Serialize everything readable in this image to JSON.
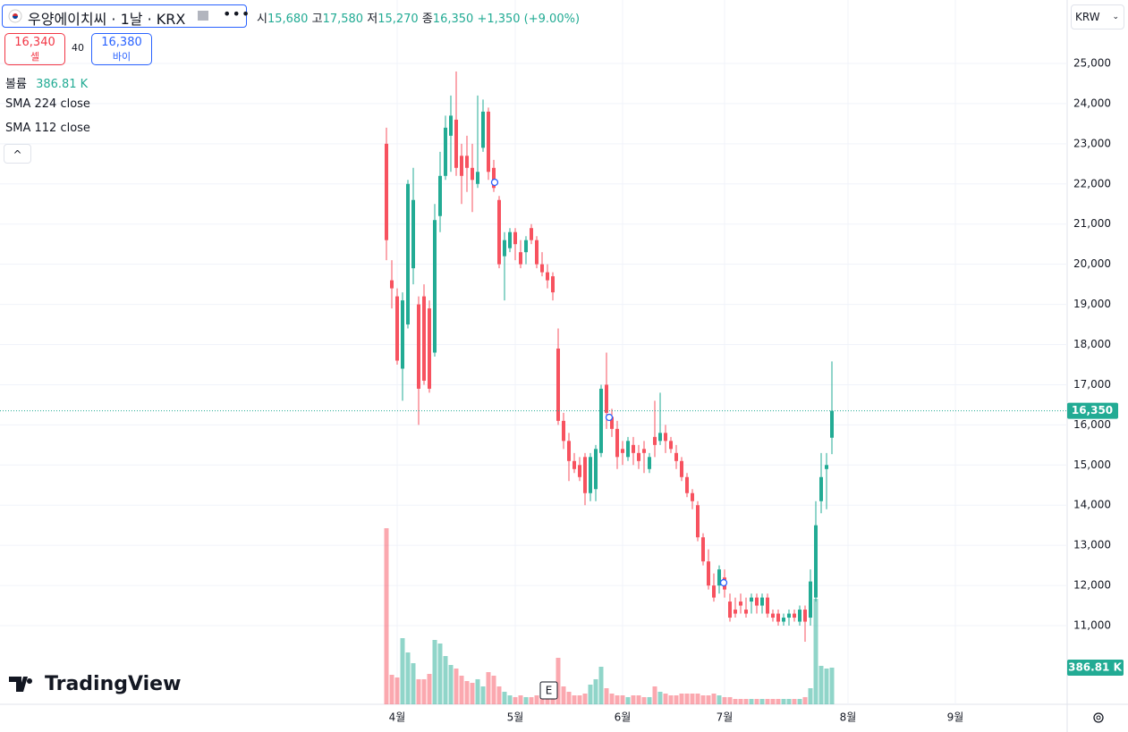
{
  "header": {
    "symbol": "우양에이치씨 · 1날 · KRX",
    "ohlc": [
      {
        "label": "시",
        "value": "15,680"
      },
      {
        "label": "고",
        "value": "17,580"
      },
      {
        "label": "저",
        "value": "15,270"
      },
      {
        "label": "종",
        "value": "16,350"
      }
    ],
    "change": "+1,350 (+9.00%)"
  },
  "trade": {
    "sell_price": "16,340",
    "sell_label": "셀",
    "spread": "40",
    "buy_price": "16,380",
    "buy_label": "바이"
  },
  "legend": {
    "volume_label": "볼륨",
    "volume_value": "386.81 K",
    "indicators": [
      "SMA 224 close",
      "SMA 112 close"
    ]
  },
  "currency": "KRW",
  "logo": "TradingView",
  "events": {
    "earnings": "E"
  },
  "chart_data": {
    "type": "candlestick",
    "categories": [
      null,
      null,
      "4월",
      null,
      null,
      null,
      null,
      null,
      null,
      null,
      null,
      null,
      null,
      null,
      null,
      null,
      null,
      null,
      null,
      null,
      null,
      null,
      null,
      null,
      "5월",
      null,
      null,
      null,
      null,
      null,
      null,
      null,
      null,
      null,
      null,
      null,
      null,
      null,
      null,
      null,
      null,
      null,
      null,
      null,
      "6월",
      null,
      null,
      null,
      null,
      null,
      null,
      null,
      null,
      null,
      null,
      null,
      null,
      null,
      null,
      null,
      null,
      null,
      null,
      "7월",
      null,
      null,
      null,
      null,
      null,
      null,
      null,
      null,
      null,
      null,
      null,
      null,
      null,
      null,
      null,
      null,
      null,
      null,
      null,
      null,
      null,
      null,
      "8월",
      null,
      null,
      null,
      null,
      null,
      null,
      null,
      null,
      null,
      null,
      null,
      null,
      null,
      null,
      null,
      null,
      null,
      null,
      null,
      "9월",
      null
    ],
    "open": [
      23000,
      19600,
      19200,
      17400,
      18500,
      19900,
      19000,
      19200,
      18900,
      17800,
      21200,
      22200,
      23200,
      23600,
      22700,
      22700,
      22400,
      22000,
      22900,
      23800,
      22400,
      21600,
      20200,
      20400,
      20800,
      20300,
      20300,
      20900,
      20600,
      20000,
      19800,
      19700,
      17900,
      16100,
      15600,
      15100,
      15000,
      15200,
      14300,
      14400,
      15300,
      17000,
      16200,
      15900,
      15400,
      15200,
      15500,
      15300,
      15400,
      14900,
      15700,
      15600,
      15800,
      15600,
      15300,
      15100,
      14700,
      14300,
      14000,
      13200,
      12600,
      12000,
      12000,
      12200,
      11600,
      11400,
      11600,
      11400,
      11600,
      11700,
      11500,
      11700,
      11300,
      11300,
      11100,
      11200,
      11300,
      11100,
      11400,
      11200,
      11700,
      14100,
      14900,
      15680,
      null,
      null,
      null,
      null,
      null,
      null,
      null,
      null,
      null,
      null,
      null,
      null,
      null,
      null,
      null,
      null,
      null,
      null,
      null,
      null,
      null,
      null,
      null,
      null
    ],
    "high": [
      23400,
      20100,
      19400,
      19300,
      22100,
      22400,
      19200,
      19500,
      19100,
      21500,
      22800,
      23700,
      24200,
      24800,
      23000,
      23200,
      23000,
      24200,
      24100,
      23900,
      22600,
      21700,
      20800,
      20900,
      20900,
      20600,
      20700,
      21000,
      20700,
      20300,
      20000,
      19800,
      18400,
      16300,
      15800,
      15300,
      15200,
      15300,
      15300,
      15500,
      17000,
      17800,
      16400,
      16100,
      15600,
      15700,
      15700,
      15500,
      15600,
      15300,
      16600,
      16800,
      16000,
      15700,
      15500,
      15200,
      14800,
      14400,
      14100,
      13300,
      12900,
      12300,
      12500,
      12400,
      11800,
      11700,
      11800,
      11700,
      11800,
      11800,
      11800,
      11800,
      11400,
      11400,
      11300,
      11400,
      11400,
      11500,
      11500,
      12400,
      14100,
      15300,
      15300,
      17580,
      null,
      null,
      null,
      null,
      null,
      null,
      null,
      null,
      null,
      null,
      null,
      null,
      null,
      null,
      null,
      null,
      null,
      null,
      null,
      null,
      null,
      null,
      null,
      null
    ],
    "low": [
      20100,
      18900,
      17500,
      16600,
      18400,
      19500,
      16000,
      17000,
      16800,
      17700,
      20800,
      22100,
      22300,
      22200,
      21500,
      21800,
      21300,
      21900,
      22800,
      22100,
      21800,
      19900,
      19100,
      20300,
      20100,
      19900,
      20000,
      20500,
      19900,
      19700,
      19400,
      19100,
      16000,
      15400,
      14600,
      14800,
      14600,
      14000,
      14100,
      14100,
      15200,
      15900,
      15700,
      14900,
      15000,
      15100,
      15000,
      14900,
      14800,
      14800,
      15200,
      15500,
      15300,
      15300,
      14900,
      14600,
      14200,
      13900,
      13100,
      12500,
      11900,
      11600,
      11800,
      11700,
      11100,
      11200,
      11300,
      11200,
      11300,
      11300,
      11300,
      11200,
      11100,
      11000,
      11000,
      11000,
      11100,
      11000,
      10600,
      11000,
      11600,
      13800,
      13900,
      15270,
      null,
      null,
      null,
      null,
      null,
      null,
      null,
      null,
      null,
      null,
      null,
      null,
      null,
      null,
      null,
      null,
      null,
      null,
      null,
      null,
      null,
      null,
      null,
      null
    ],
    "close": [
      20600,
      19400,
      17600,
      19100,
      22000,
      21600,
      16900,
      17100,
      16900,
      21100,
      22200,
      23400,
      23700,
      22400,
      22200,
      22400,
      22100,
      22300,
      23800,
      22300,
      21900,
      20000,
      20600,
      20800,
      20500,
      20000,
      20600,
      20600,
      20000,
      19800,
      19600,
      19300,
      16100,
      15600,
      15100,
      14900,
      14700,
      14300,
      15200,
      15400,
      16900,
      16300,
      15900,
      15200,
      15300,
      15600,
      15300,
      15100,
      15300,
      15200,
      15500,
      15800,
      15600,
      15400,
      15100,
      14700,
      14300,
      14100,
      13200,
      12600,
      12000,
      11700,
      12400,
      11900,
      11200,
      11300,
      11500,
      11300,
      11700,
      11500,
      11700,
      11300,
      11200,
      11100,
      11200,
      11300,
      11200,
      11400,
      11100,
      12100,
      13500,
      14700,
      15000,
      16350,
      null,
      null,
      null,
      null,
      null,
      null,
      null,
      null,
      null,
      null,
      null,
      null,
      null,
      null,
      null,
      null,
      null,
      null,
      null,
      null,
      null,
      null,
      null,
      null
    ],
    "volume": [
      1858500,
      311300,
      283000,
      698100,
      547200,
      434000,
      264200,
      264200,
      320800,
      679200,
      641500,
      509400,
      415100,
      377400,
      301900,
      245300,
      226400,
      264200,
      188700,
      339600,
      301900,
      188700,
      132100,
      94300,
      75500,
      94300,
      75500,
      75500,
      94300,
      75500,
      113200,
      94300,
      490600,
      188700,
      132100,
      94300,
      94300,
      113200,
      207500,
      264200,
      396200,
      169800,
      113200,
      94300,
      94300,
      75500,
      94300,
      94300,
      75500,
      75500,
      188700,
      132100,
      113200,
      94300,
      94300,
      113200,
      113200,
      113200,
      113200,
      94300,
      94300,
      113200,
      94300,
      75500,
      75500,
      56600,
      56600,
      56600,
      56600,
      56600,
      56600,
      56600,
      56600,
      56600,
      56600,
      56600,
      56600,
      56600,
      75500,
      169800,
      1113200,
      405700,
      377400,
      386810,
      null,
      null,
      null,
      null,
      null,
      null,
      null,
      null,
      null,
      null,
      null,
      null,
      null,
      null,
      null,
      null,
      null,
      null,
      null,
      null,
      null,
      null,
      null,
      null
    ],
    "last_price_label": "16,350",
    "last_volume_label": "386.81 K",
    "up_color": "#22ab94",
    "down_color": "#f7525f",
    "ylim": [
      9042,
      26580
    ],
    "yticks": [
      {
        "value": 11000,
        "label": "11,000"
      },
      {
        "value": 12000,
        "label": "12,000"
      },
      {
        "value": 13000,
        "label": "13,000"
      },
      {
        "value": 14000,
        "label": "14,000"
      },
      {
        "value": 15000,
        "label": "15,000"
      },
      {
        "value": 16000,
        "label": "16,000"
      },
      {
        "value": 17000,
        "label": "17,000"
      },
      {
        "value": 18000,
        "label": "18,000"
      },
      {
        "value": 19000,
        "label": "19,000"
      },
      {
        "value": 20000,
        "label": "20,000"
      },
      {
        "value": 21000,
        "label": "21,000"
      },
      {
        "value": 22000,
        "label": "22,000"
      },
      {
        "value": 23000,
        "label": "23,000"
      },
      {
        "value": 24000,
        "label": "24,000"
      },
      {
        "value": 25000,
        "label": "25,000"
      }
    ],
    "grid": true
  }
}
